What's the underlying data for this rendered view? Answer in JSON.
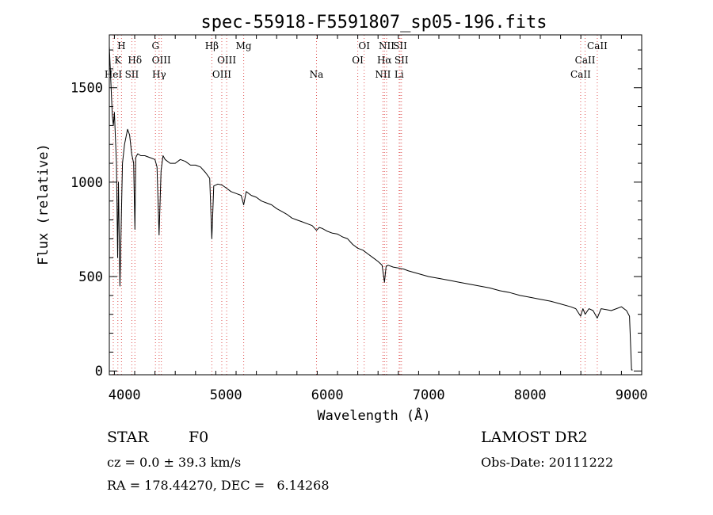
{
  "title": "spec-55918-F5591807_sp05-196.fits",
  "info": {
    "class_label": "STAR",
    "subclass": "F0",
    "cz": "cz = 0.0 ± 39.3 km/s",
    "radec": "RA = 178.44270, DEC =   6.14268",
    "survey": "LAMOST DR2",
    "obs_date": "Obs-Date: 20111222"
  },
  "chart_data": {
    "type": "line",
    "xlabel": "Wavelength (Å)",
    "ylabel": "Flux (relative)",
    "xlim": [
      3850,
      9100
    ],
    "ylim": [
      -20,
      1780
    ],
    "xticks": [
      4000,
      5000,
      6000,
      7000,
      8000,
      9000
    ],
    "yticks": [
      0,
      500,
      1000,
      1500
    ],
    "colors": {
      "line": "#000000",
      "marker": "#e05555",
      "axis": "#000000"
    },
    "lines": [
      {
        "label": "CaII",
        "wl": 8662,
        "row": 0
      },
      {
        "label": "CaII",
        "wl": 8542,
        "row": 1
      },
      {
        "label": "CaII",
        "wl": 8498,
        "row": 2
      },
      {
        "label": "H",
        "wl": 3970,
        "row": 0
      },
      {
        "label": "K",
        "wl": 3934,
        "row": 1
      },
      {
        "label": "HeI",
        "wl": 3889,
        "row": 2
      },
      {
        "label": "Hδ",
        "wl": 4102,
        "row": 1
      },
      {
        "label": "SII",
        "wl": 4072,
        "row": 2
      },
      {
        "label": "G",
        "wl": 4305,
        "row": 0
      },
      {
        "label": "OIII",
        "wl": 4363,
        "row": 1
      },
      {
        "label": "Hγ",
        "wl": 4341,
        "row": 2
      },
      {
        "label": "Hβ",
        "wl": 4861,
        "row": 0
      },
      {
        "label": "OIII",
        "wl": 5007,
        "row": 1
      },
      {
        "label": "OIII",
        "wl": 4959,
        "row": 2
      },
      {
        "label": "Mg",
        "wl": 5175,
        "row": 0
      },
      {
        "label": "Na",
        "wl": 5893,
        "row": 2
      },
      {
        "label": "OI",
        "wl": 6363,
        "row": 0
      },
      {
        "label": "OI",
        "wl": 6300,
        "row": 1
      },
      {
        "label": "NII",
        "wl": 6584,
        "row": 0
      },
      {
        "label": "SII",
        "wl": 6717,
        "row": 0
      },
      {
        "label": "Hα",
        "wl": 6563,
        "row": 1
      },
      {
        "label": "SII",
        "wl": 6731,
        "row": 1
      },
      {
        "label": "NII",
        "wl": 6548,
        "row": 2
      },
      {
        "label": "Li",
        "wl": 6708,
        "row": 2
      }
    ],
    "series": [
      {
        "x": [
          3850,
          3880,
          3890,
          3900,
          3920,
          3932,
          3940,
          3955,
          3968,
          3980,
          4000,
          4030,
          4050,
          4070,
          4090,
          4102,
          4110,
          4130,
          4160,
          4200,
          4250,
          4300,
          4320,
          4341,
          4360,
          4380,
          4400,
          4450,
          4500,
          4550,
          4600,
          4650,
          4700,
          4750,
          4800,
          4840,
          4861,
          4880,
          4920,
          4960,
          5000,
          5050,
          5100,
          5150,
          5175,
          5200,
          5250,
          5300,
          5350,
          5400,
          5450,
          5500,
          5550,
          5600,
          5650,
          5700,
          5750,
          5800,
          5850,
          5893,
          5920,
          5950,
          6000,
          6050,
          6100,
          6150,
          6200,
          6250,
          6300,
          6350,
          6400,
          6450,
          6500,
          6540,
          6563,
          6580,
          6600,
          6650,
          6700,
          6750,
          6800,
          6900,
          7000,
          7100,
          7200,
          7300,
          7400,
          7500,
          7600,
          7700,
          7800,
          7900,
          8000,
          8100,
          8200,
          8300,
          8400,
          8450,
          8498,
          8520,
          8542,
          8580,
          8620,
          8662,
          8700,
          8750,
          8800,
          8850,
          8900,
          8950,
          8980,
          9000,
          9010
        ],
        "y": [
          1720,
          1350,
          1300,
          1370,
          1100,
          600,
          1000,
          450,
          800,
          1100,
          1200,
          1280,
          1250,
          1150,
          1100,
          750,
          1130,
          1150,
          1140,
          1140,
          1130,
          1120,
          1080,
          720,
          1060,
          1140,
          1120,
          1100,
          1100,
          1120,
          1110,
          1090,
          1090,
          1080,
          1050,
          1020,
          700,
          980,
          990,
          985,
          970,
          950,
          940,
          930,
          880,
          950,
          930,
          920,
          900,
          890,
          880,
          860,
          845,
          830,
          810,
          800,
          790,
          780,
          770,
          745,
          760,
          755,
          740,
          730,
          725,
          710,
          700,
          670,
          650,
          640,
          620,
          600,
          580,
          560,
          470,
          555,
          560,
          550,
          545,
          540,
          530,
          515,
          500,
          490,
          480,
          470,
          460,
          450,
          440,
          425,
          415,
          400,
          390,
          380,
          370,
          355,
          340,
          330,
          290,
          330,
          300,
          330,
          320,
          280,
          330,
          325,
          320,
          330,
          340,
          320,
          290,
          5,
          5
        ]
      }
    ]
  }
}
